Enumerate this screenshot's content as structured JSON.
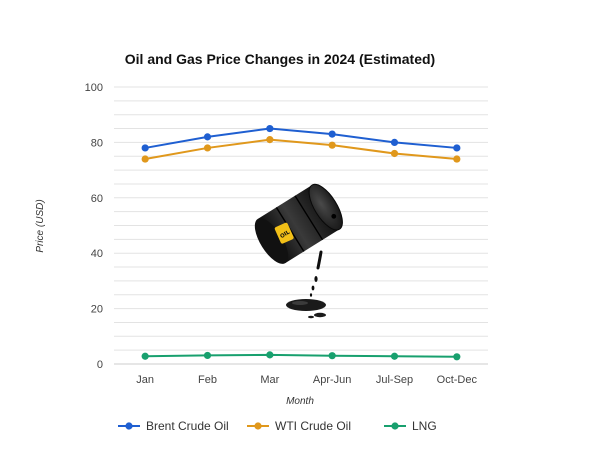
{
  "chart_data": {
    "type": "line",
    "title": "Oil and Gas Price Changes in 2024 (Estimated)",
    "xlabel": "Month",
    "ylabel": "Price (USD)",
    "categories": [
      "Jan",
      "Feb",
      "Mar",
      "Apr-Jun",
      "Jul-Sep",
      "Oct-Dec"
    ],
    "ylim": [
      0,
      100
    ],
    "yticks": [
      0,
      20,
      40,
      60,
      80,
      100
    ],
    "grid": true,
    "legend_position": "bottom",
    "series": [
      {
        "name": "Brent Crude Oil",
        "color": "#1f5fd1",
        "values": [
          78,
          82,
          85,
          83,
          80,
          78
        ]
      },
      {
        "name": "WTI Crude Oil",
        "color": "#e0981c",
        "values": [
          74,
          78,
          81,
          79,
          76,
          74
        ]
      },
      {
        "name": "LNG",
        "color": "#18a06e",
        "values": [
          2.8,
          3.1,
          3.3,
          3.0,
          2.8,
          2.6
        ]
      }
    ],
    "decoration": {
      "icon": "oil-barrel-icon",
      "label_on_barrel": "OIL",
      "colors": {
        "barrel": "#1b1b1b",
        "label": "#f2c018"
      }
    }
  }
}
